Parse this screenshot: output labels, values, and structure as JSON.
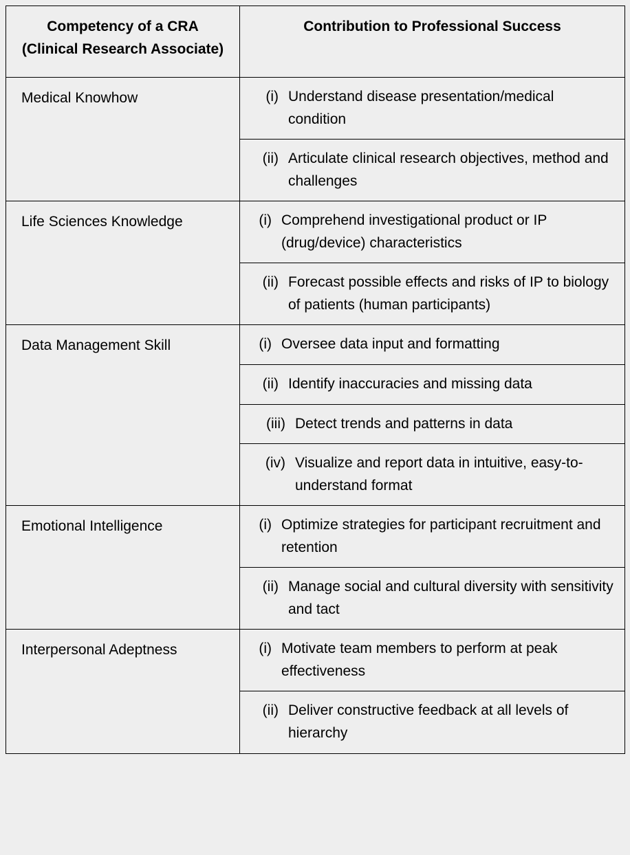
{
  "table": {
    "header": {
      "left": "Competency of a CRA (Clinical Research Associate)",
      "right": "Contribution to Professional Success"
    },
    "rows": [
      {
        "competency": "Medical Knowhow",
        "contributions": [
          {
            "marker": "(i)",
            "text": "Understand disease presentation/medical condition"
          },
          {
            "marker": "(ii)",
            "text": "Articulate clinical research objectives, method and challenges"
          }
        ]
      },
      {
        "competency": "Life Sciences Knowledge",
        "contributions": [
          {
            "marker": "(i)",
            "text": "Comprehend investigational product or IP (drug/device) characteristics"
          },
          {
            "marker": "(ii)",
            "text": "Forecast possible effects and risks of IP to biology of patients (human participants)"
          }
        ]
      },
      {
        "competency": "Data Management Skill",
        "contributions": [
          {
            "marker": "(i)",
            "text": "Oversee data input and formatting"
          },
          {
            "marker": "(ii)",
            "text": "Identify inaccuracies and missing data"
          },
          {
            "marker": "(iii)",
            "text": "Detect trends and patterns in data"
          },
          {
            "marker": "(iv)",
            "text": "Visualize and report data in intuitive, easy-to-understand format"
          }
        ]
      },
      {
        "competency": "Emotional Intelligence",
        "contributions": [
          {
            "marker": "(i)",
            "text": "Optimize strategies for participant recruitment and retention"
          },
          {
            "marker": "(ii)",
            "text": "Manage social and cultural diversity with sensitivity and tact"
          }
        ]
      },
      {
        "competency": "Interpersonal Adeptness",
        "contributions": [
          {
            "marker": "(i)",
            "text": "Motivate team members to perform at peak effectiveness"
          },
          {
            "marker": "(ii)",
            "text": "Deliver constructive feedback at all levels of hierarchy"
          }
        ]
      }
    ]
  }
}
